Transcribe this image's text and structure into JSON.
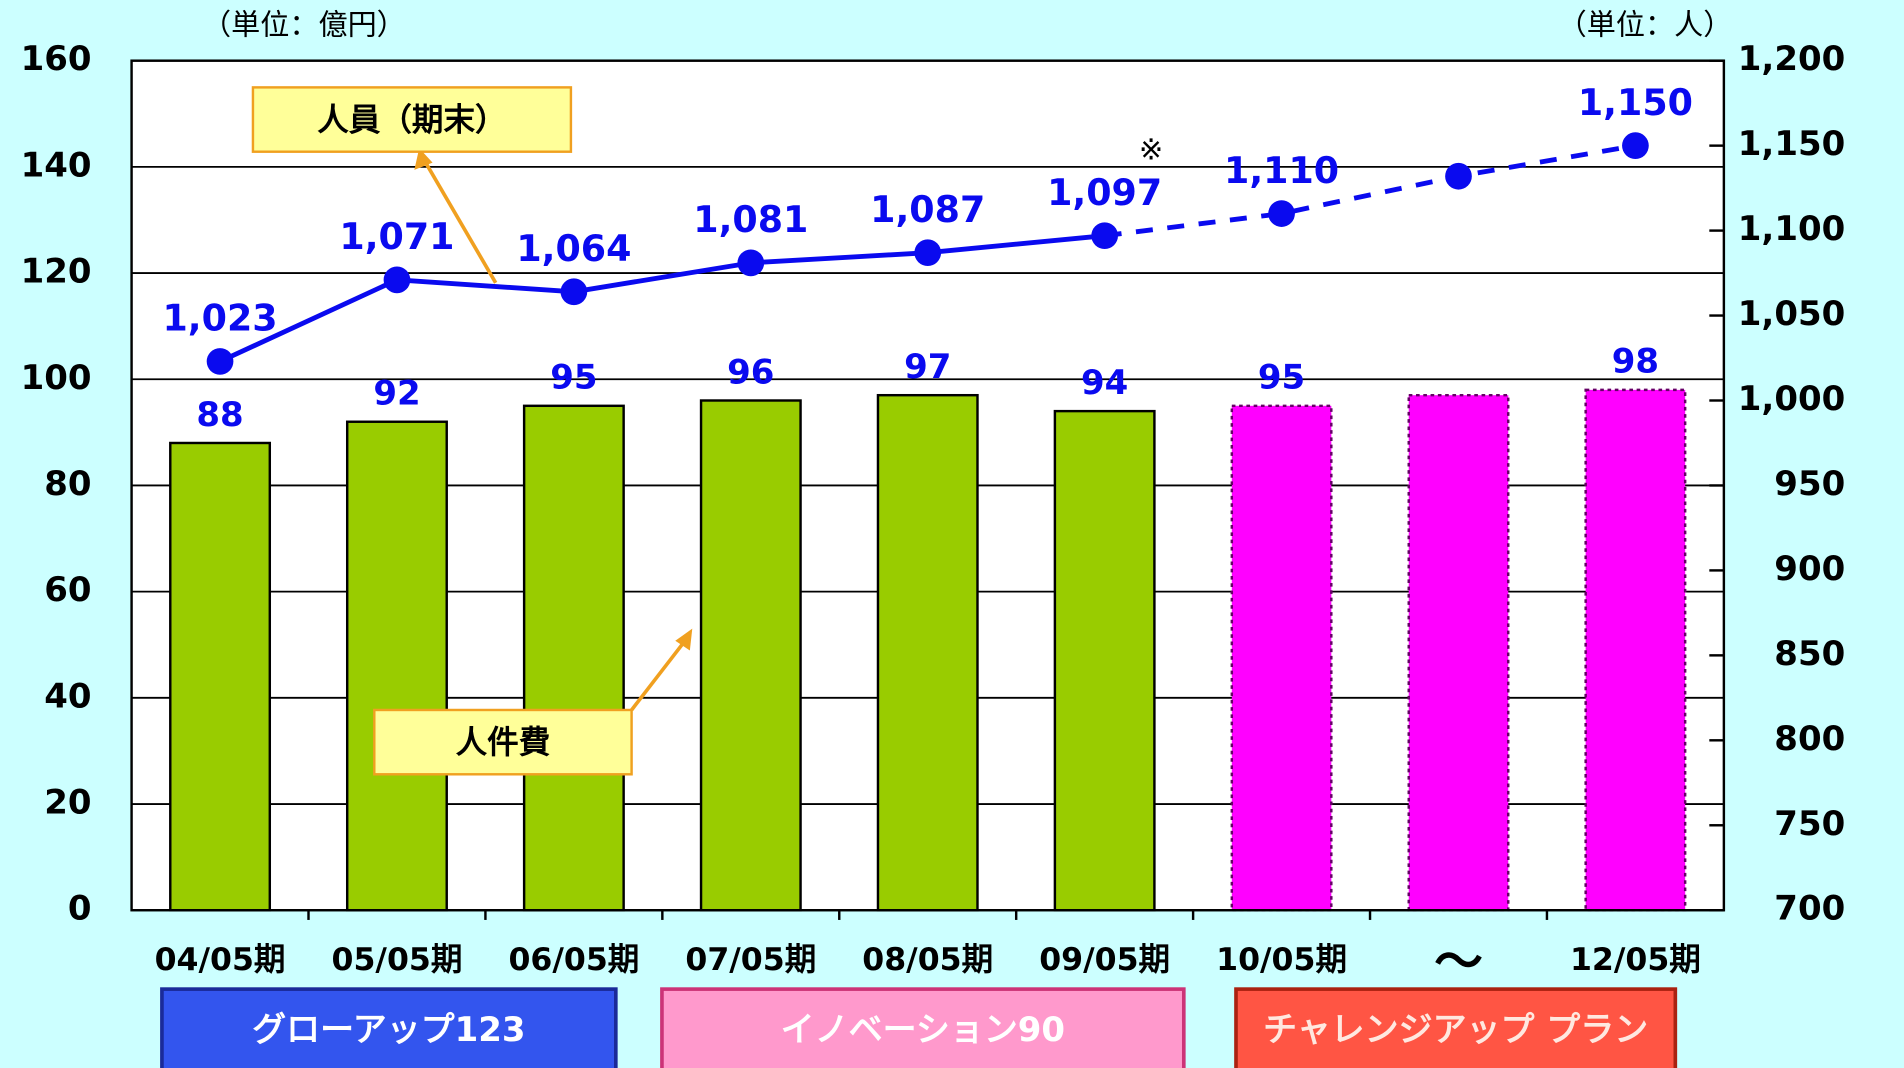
{
  "chart_data": {
    "type": "bar-line",
    "unit_left": "（単位：億円）",
    "unit_right": "（単位：人）",
    "note": "※",
    "categories": [
      "04/05期",
      "05/05期",
      "06/05期",
      "07/05期",
      "08/05期",
      "09/05期",
      "10/05期",
      "〜",
      "12/05期"
    ],
    "series": [
      {
        "name": "人件費",
        "type": "bar",
        "colors": [
          "#99cc00",
          "#99cc00",
          "#99cc00",
          "#99cc00",
          "#99cc00",
          "#99cc00",
          "#ff00ff",
          "#ff00ff",
          "#ff00ff"
        ],
        "dotted_from": 6,
        "values": [
          88,
          92,
          95,
          96,
          97,
          94,
          95,
          97,
          98
        ],
        "value_labels": [
          88,
          92,
          95,
          96,
          97,
          94,
          95,
          null,
          98
        ]
      },
      {
        "name": "人員（期末）",
        "type": "line",
        "axis": "y2",
        "color": "#0a0aef",
        "dashed_from": 5,
        "values": [
          1023,
          1071,
          1064,
          1081,
          1087,
          1097,
          1110,
          1132,
          1150
        ],
        "value_labels": [
          "1,023",
          "1,071",
          "1,064",
          "1,081",
          "1,087",
          "1,097",
          "1,110",
          null,
          "1,150"
        ]
      }
    ],
    "ylim": [
      0,
      160
    ],
    "yticks": [
      0,
      20,
      40,
      60,
      80,
      100,
      120,
      140,
      160
    ],
    "y2lim": [
      700,
      1200
    ],
    "y2ticks": [
      700,
      750,
      800,
      850,
      900,
      950,
      {
        "value": 1000,
        "label": "1,000"
      },
      {
        "value": 1050,
        "label": "1,050"
      },
      {
        "value": 1100,
        "label": "1,100"
      },
      {
        "value": 1150,
        "label": "1,150"
      },
      {
        "value": 1200,
        "label": "1,200"
      }
    ],
    "grid": true,
    "phases": [
      "グローアップ123",
      "イノベーション90",
      "チャレンジアップ プラン"
    ]
  }
}
